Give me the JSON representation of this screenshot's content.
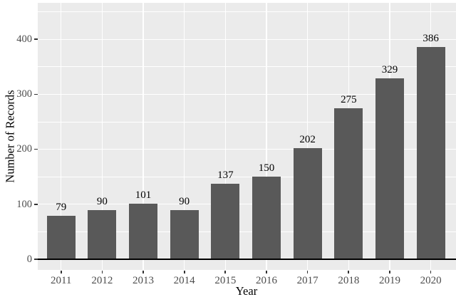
{
  "figure": {
    "colors": {
      "background": "#ffffff",
      "panel_background": "#ebebeb",
      "grid": "#ffffff",
      "bar_fill": "#595959",
      "axis_line": "#000000",
      "tick_mark": "#333333",
      "tick_label": "#4d4d4d",
      "axis_title": "#000000",
      "bar_value_label": "#000000"
    }
  },
  "chart_data": {
    "type": "bar",
    "title": "",
    "xlabel": "Year",
    "ylabel": "Number of Records",
    "categories": [
      "2011",
      "2012",
      "2013",
      "2014",
      "2015",
      "2016",
      "2017",
      "2018",
      "2019",
      "2020"
    ],
    "values": [
      79,
      90,
      101,
      90,
      137,
      150,
      202,
      275,
      329,
      386
    ],
    "bar_labels": [
      "79",
      "90",
      "101",
      "90",
      "137",
      "150",
      "202",
      "275",
      "329",
      "386"
    ],
    "yticks": [
      0,
      100,
      200,
      300,
      400
    ],
    "ytick_labels": [
      "0",
      "100",
      "200",
      "300",
      "400"
    ],
    "minor_yticks": [
      50,
      150,
      250,
      350,
      450
    ],
    "ylim": [
      0,
      450
    ],
    "grid": "major-and-minor-horizontal, major-vertical-at-categories",
    "legend": "none",
    "style": "ggplot2-gray-theme"
  }
}
